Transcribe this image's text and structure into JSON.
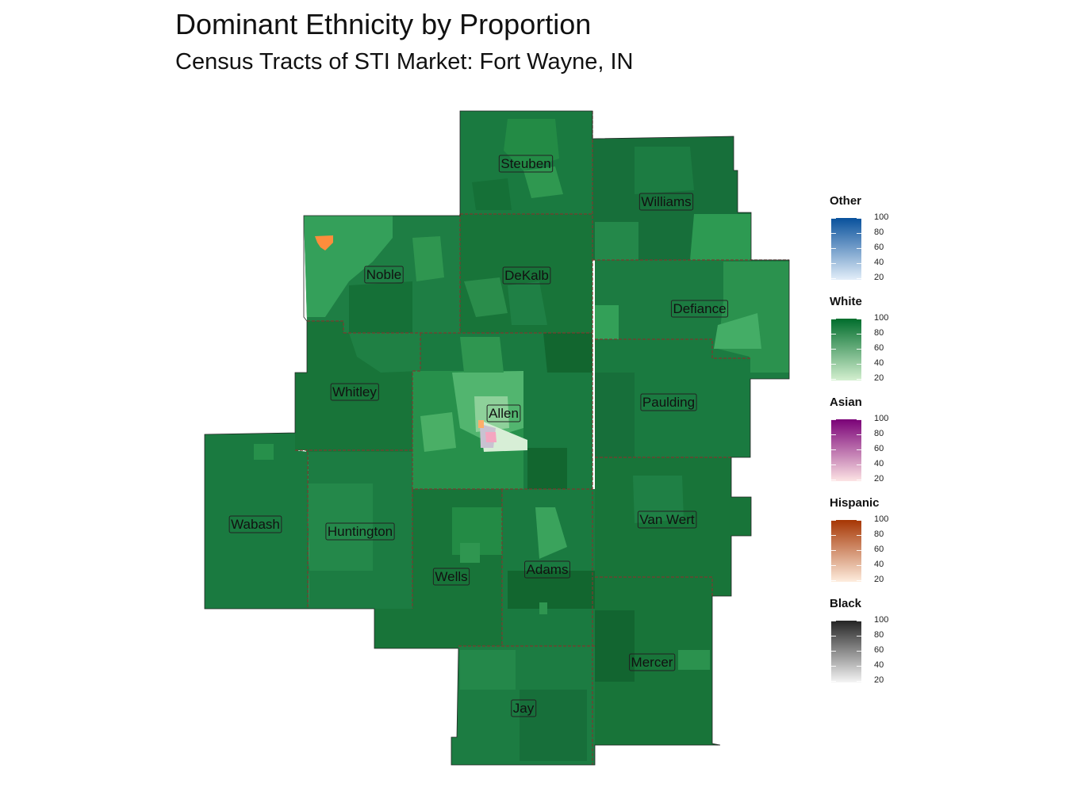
{
  "title": "Dominant Ethnicity by Proportion",
  "subtitle": "Census Tracts of STI Market: Fort Wayne, IN",
  "counties": [
    {
      "name": "Steuben"
    },
    {
      "name": "Williams"
    },
    {
      "name": "Noble"
    },
    {
      "name": "DeKalb"
    },
    {
      "name": "Defiance"
    },
    {
      "name": "Whitley"
    },
    {
      "name": "Allen"
    },
    {
      "name": "Paulding"
    },
    {
      "name": "Wabash"
    },
    {
      "name": "Huntington"
    },
    {
      "name": "Van Wert"
    },
    {
      "name": "Wells"
    },
    {
      "name": "Adams"
    },
    {
      "name": "Mercer"
    },
    {
      "name": "Jay"
    }
  ],
  "legend": [
    {
      "title": "Other",
      "low_color": "#e3eef9",
      "high_color": "#08519c",
      "ticks": [
        "100",
        "80",
        "60",
        "40",
        "20"
      ]
    },
    {
      "title": "White",
      "low_color": "#d4f0d0",
      "high_color": "#006d2c",
      "ticks": [
        "100",
        "80",
        "60",
        "40",
        "20"
      ]
    },
    {
      "title": "Asian",
      "low_color": "#fde4e4",
      "high_color": "#7a0177",
      "ticks": [
        "100",
        "80",
        "60",
        "40",
        "20"
      ]
    },
    {
      "title": "Hispanic",
      "low_color": "#feedde",
      "high_color": "#a63603",
      "ticks": [
        "100",
        "80",
        "60",
        "40",
        "20"
      ]
    },
    {
      "title": "Black",
      "low_color": "#f5f5f5",
      "high_color": "#252525",
      "ticks": [
        "100",
        "80",
        "60",
        "40",
        "20"
      ]
    }
  ]
}
